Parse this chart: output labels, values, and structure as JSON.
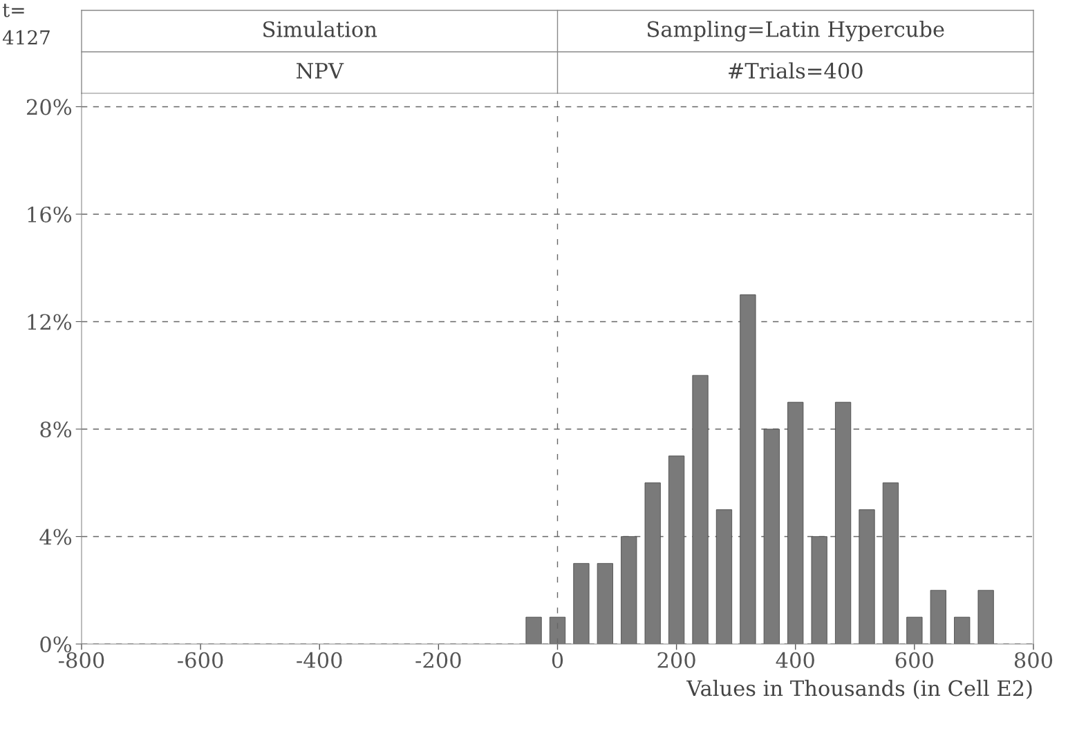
{
  "chart_data": {
    "type": "histogram",
    "title": "Simulation",
    "subtitle": "NPV",
    "annotations": [
      "Sampling=Latin Hypercube",
      "#Trials=400",
      "t=",
      "4127"
    ],
    "xlabel": "Values in Thousands (in Cell E2)",
    "bins": [
      -60,
      -20,
      20,
      60,
      100,
      140,
      180,
      220,
      260,
      300,
      340,
      380,
      420,
      460,
      500,
      540,
      580,
      620,
      660,
      700,
      740
    ],
    "values": [
      1,
      1,
      3,
      3,
      4,
      6,
      7,
      10,
      5,
      13,
      8,
      9,
      4,
      9,
      5,
      6,
      1,
      2,
      1,
      2
    ],
    "color": "#7a7a7a",
    "xlim": [
      -800,
      800
    ],
    "xticks": [
      -800,
      -600,
      -400,
      -200,
      0,
      200,
      400,
      600,
      800
    ],
    "ylim": [
      0,
      20.5
    ],
    "yticks": [
      {
        "value": 0,
        "label": "0%"
      },
      {
        "value": 4,
        "label": "4%"
      },
      {
        "value": 8,
        "label": "8%"
      },
      {
        "value": 12,
        "label": "12%"
      },
      {
        "value": 16,
        "label": "16%"
      },
      {
        "value": 20,
        "label": "20%"
      }
    ],
    "ref_lines": [
      {
        "axis": "x",
        "value": 0,
        "label": null,
        "line_style": "dashed"
      }
    ],
    "grid": "y",
    "legend": false
  }
}
